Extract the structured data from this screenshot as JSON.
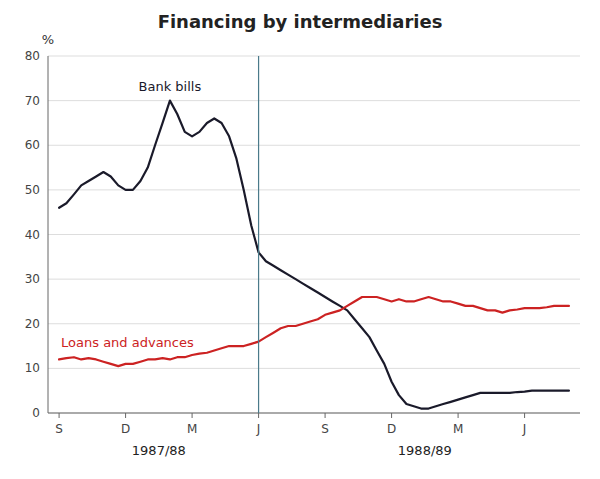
{
  "chart_data": {
    "type": "line",
    "title": "Financing by intermediaries",
    "y_label": "%",
    "xlim": [
      -0.5,
      23.5
    ],
    "xticks": [
      {
        "value": 0,
        "label": "S"
      },
      {
        "value": 3,
        "label": "D"
      },
      {
        "value": 6,
        "label": "M"
      },
      {
        "value": 9,
        "label": "J"
      },
      {
        "value": 12,
        "label": "S"
      },
      {
        "value": 15,
        "label": "D"
      },
      {
        "value": 18,
        "label": "M"
      },
      {
        "value": 21,
        "label": "J"
      }
    ],
    "ylim": [
      0,
      80
    ],
    "yticks": [
      0,
      10,
      20,
      30,
      40,
      50,
      60,
      70,
      80
    ],
    "grid": true,
    "vline": 9,
    "annotations": [
      {
        "text": "1987/88",
        "x": 4.5
      },
      {
        "text": "1988/89",
        "x": 16.5
      }
    ],
    "series": [
      {
        "name": "Bank bills",
        "color": "#1a1a2a",
        "x": [
          0,
          0.33,
          0.67,
          1,
          1.33,
          1.67,
          2,
          2.33,
          2.67,
          3,
          3.33,
          3.67,
          4,
          4.33,
          4.67,
          5,
          5.33,
          5.67,
          6,
          6.33,
          6.67,
          7,
          7.33,
          7.67,
          8,
          8.33,
          8.67,
          9,
          9.33,
          9.67,
          10,
          10.33,
          10.67,
          11,
          11.33,
          11.67,
          12,
          12.33,
          12.67,
          13,
          13.33,
          13.67,
          14,
          14.33,
          14.67,
          15,
          15.33,
          15.67,
          16,
          16.33,
          16.67,
          17,
          17.33,
          17.67,
          18,
          18.33,
          18.67,
          19,
          19.33,
          19.67,
          20,
          20.33,
          20.67,
          21,
          21.33,
          21.67,
          22,
          22.33,
          22.67,
          23
        ],
        "values": [
          46,
          47,
          49,
          51,
          52,
          53,
          54,
          53,
          51,
          50,
          50,
          52,
          55,
          60,
          65,
          70,
          67,
          63,
          62,
          63,
          65,
          66,
          65,
          62,
          57,
          50,
          42,
          36,
          34,
          33,
          32,
          31,
          30,
          29,
          28,
          27,
          26,
          25,
          24,
          23,
          21,
          19,
          17,
          14,
          11,
          7,
          4,
          2,
          1.5,
          1,
          1,
          1.5,
          2,
          2.5,
          3,
          3.5,
          4,
          4.5,
          4.5,
          4.5,
          4.5,
          4.5,
          4.7,
          4.8,
          5,
          5,
          5,
          5,
          5,
          5
        ]
      },
      {
        "name": "Loans and advances",
        "color": "#cc2222",
        "x": [
          0,
          0.33,
          0.67,
          1,
          1.33,
          1.67,
          2,
          2.33,
          2.67,
          3,
          3.33,
          3.67,
          4,
          4.33,
          4.67,
          5,
          5.33,
          5.67,
          6,
          6.33,
          6.67,
          7,
          7.33,
          7.67,
          8,
          8.33,
          8.67,
          9,
          9.33,
          9.67,
          10,
          10.33,
          10.67,
          11,
          11.33,
          11.67,
          12,
          12.33,
          12.67,
          13,
          13.33,
          13.67,
          14,
          14.33,
          14.67,
          15,
          15.33,
          15.67,
          16,
          16.33,
          16.67,
          17,
          17.33,
          17.67,
          18,
          18.33,
          18.67,
          19,
          19.33,
          19.67,
          20,
          20.33,
          20.67,
          21,
          21.33,
          21.67,
          22,
          22.33,
          22.67,
          23
        ],
        "values": [
          12,
          12.3,
          12.5,
          12,
          12.3,
          12,
          11.5,
          11,
          10.5,
          11,
          11,
          11.5,
          12,
          12,
          12.3,
          12,
          12.5,
          12.5,
          13,
          13.3,
          13.5,
          14,
          14.5,
          15,
          15,
          15,
          15.5,
          16,
          17,
          18,
          19,
          19.5,
          19.5,
          20,
          20.5,
          21,
          22,
          22.5,
          23,
          24,
          25,
          26,
          26,
          26,
          25.5,
          25,
          25.5,
          25,
          25,
          25.5,
          26,
          25.5,
          25,
          25,
          24.5,
          24,
          24,
          23.5,
          23,
          23,
          22.5,
          23,
          23.2,
          23.5,
          23.5,
          23.5,
          23.7,
          24,
          24,
          24
        ]
      }
    ]
  }
}
